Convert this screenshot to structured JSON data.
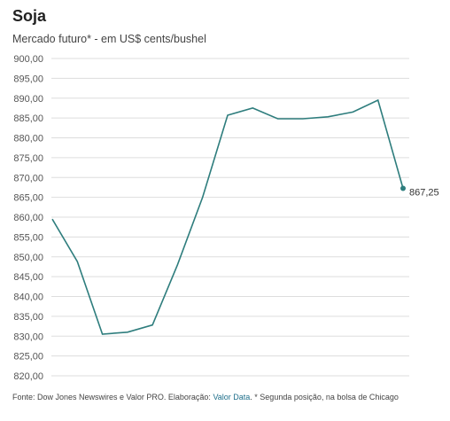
{
  "title": "Soja",
  "subtitle": "Mercado futuro* - em US$ cents/bushel",
  "footer": {
    "prefix": "Fonte: Dow Jones Newswires e Valor PRO. Elaboração: ",
    "link": "Valor Data",
    "suffix": ". * Segunda posição, na bolsa de Chicago"
  },
  "colors": {
    "line": "#2e7d7d",
    "grid": "#dddddd",
    "axis_text": "#555555"
  },
  "chart_data": {
    "type": "line",
    "title": "Soja",
    "subtitle": "Mercado futuro* - em US$ cents/bushel",
    "ylim": [
      820,
      900
    ],
    "yticks": [
      "900,00",
      "895,00",
      "890,00",
      "885,00",
      "880,00",
      "875,00",
      "870,00",
      "865,00",
      "860,00",
      "855,00",
      "850,00",
      "845,00",
      "840,00",
      "835,00",
      "830,00",
      "825,00",
      "820,00"
    ],
    "ytick_values": [
      900,
      895,
      890,
      885,
      880,
      875,
      870,
      865,
      860,
      855,
      850,
      845,
      840,
      835,
      830,
      825,
      820
    ],
    "series": [
      {
        "values": [
          859.5,
          848.8,
          830.5,
          831.0,
          832.8,
          848.0,
          865.0,
          885.7,
          887.5,
          884.8,
          884.8,
          885.3,
          886.5,
          889.5,
          867.25
        ]
      }
    ],
    "last_label": "867,25"
  }
}
